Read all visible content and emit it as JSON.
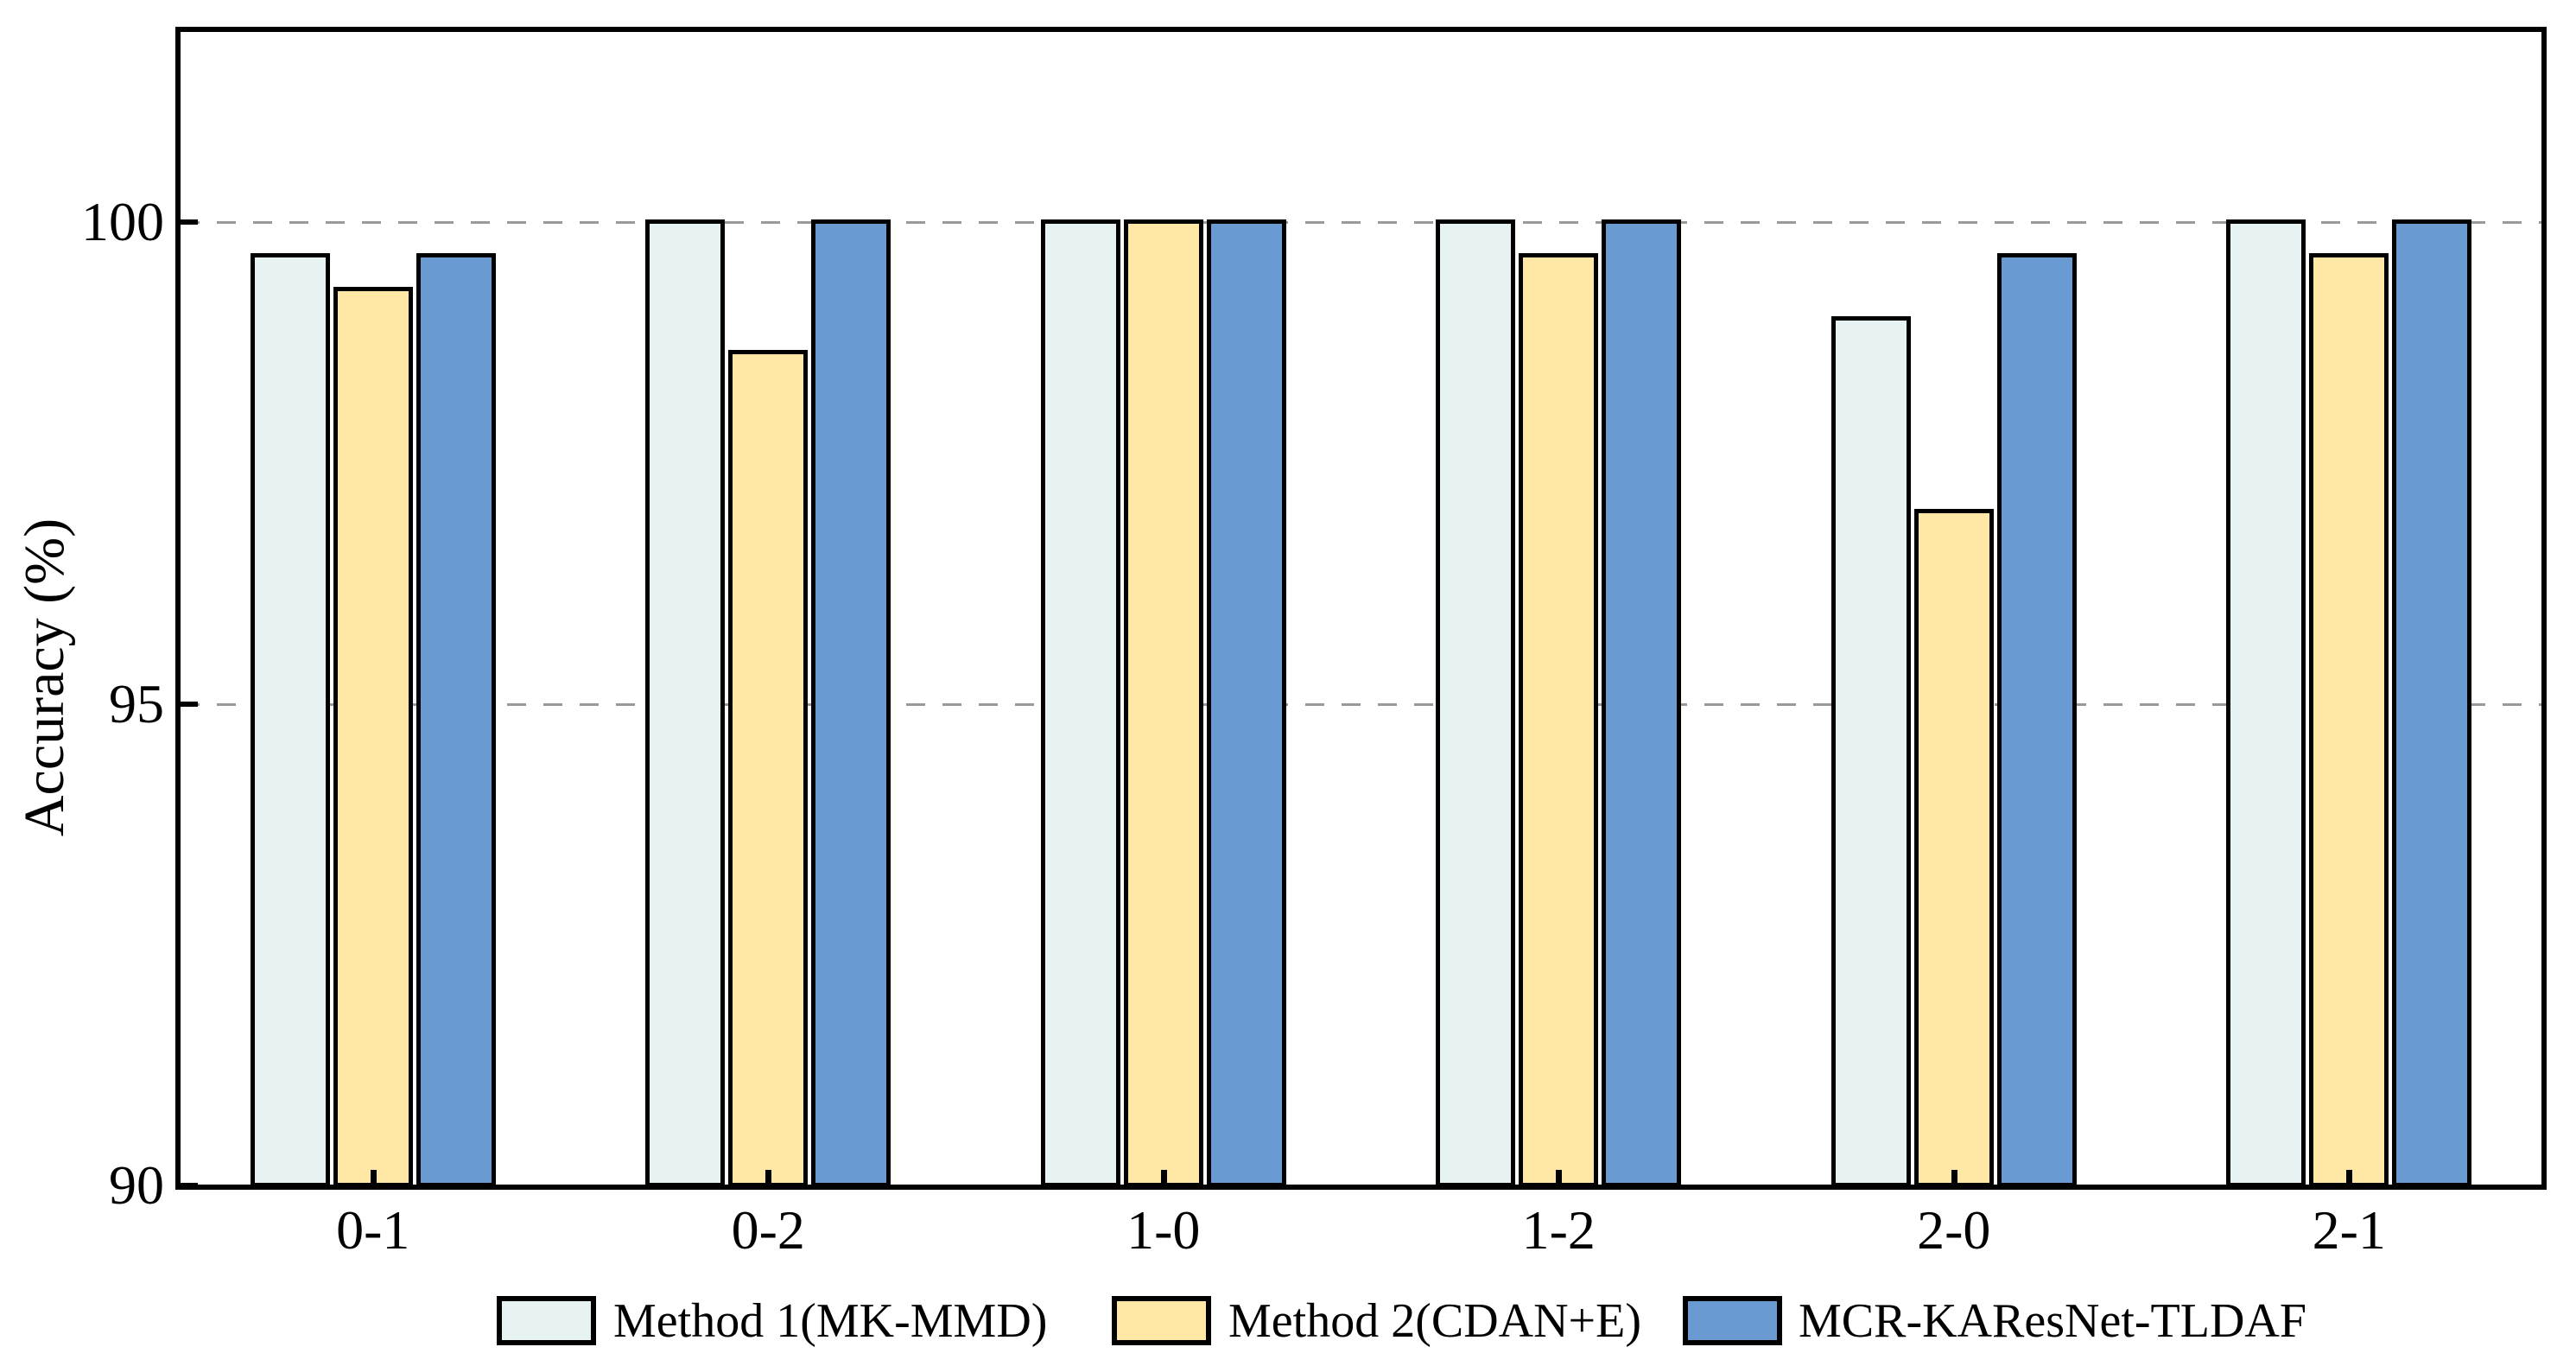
{
  "figure": {
    "background": "#ffffff",
    "axis_color": "#000000",
    "gridline_color": "#999999"
  },
  "chart_data": {
    "type": "bar",
    "title": "",
    "xlabel": "",
    "ylabel": "Accuracy (%)",
    "categories": [
      "0-1",
      "0-2",
      "1-0",
      "1-2",
      "2-0",
      "2-1"
    ],
    "series": [
      {
        "name": "Method 1(MK-MMD)",
        "color": "#E7F3F2",
        "values": [
          99.65,
          100.0,
          100.0,
          100.0,
          99.0,
          100.0
        ]
      },
      {
        "name": "Method 2(CDAN+E)",
        "color": "#FFE8A6",
        "values": [
          99.3,
          98.65,
          100.0,
          99.65,
          97.0,
          99.65
        ]
      },
      {
        "name": "MCR-KAResNet-TLDAF",
        "color": "#6A9AD2",
        "values": [
          99.65,
          100.0,
          100.0,
          100.0,
          99.65,
          100.0
        ]
      }
    ],
    "yticks": [
      90,
      95,
      100
    ],
    "ytick_labels": [
      "90",
      "95",
      "100"
    ],
    "ylim": [
      90,
      102
    ],
    "grid": "horizontal dashed at 95 and 100",
    "legend_position": "bottom"
  }
}
